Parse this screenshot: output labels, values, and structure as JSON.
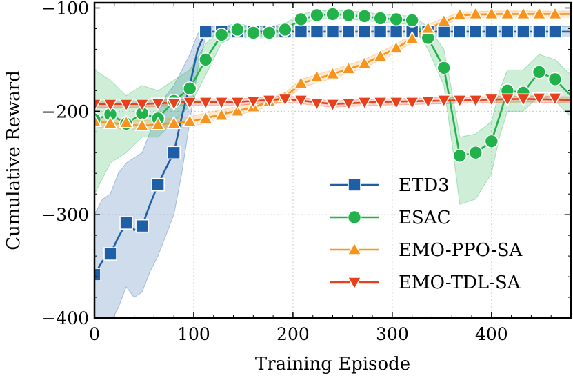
{
  "chart_data": {
    "type": "line",
    "xlabel": "Training Episode",
    "ylabel": "Cumulative Reward",
    "xlim": [
      0,
      480
    ],
    "ylim": [
      -400,
      -95
    ],
    "xticks": [
      0,
      100,
      200,
      300,
      400
    ],
    "yticks": [
      -100,
      -200,
      -300,
      -400
    ],
    "xtick_labels": [
      "0",
      "100",
      "200",
      "300",
      "400"
    ],
    "ytick_labels": [
      "−100",
      "−200",
      "−300",
      "−400"
    ],
    "grid": true,
    "legend_position": "lower-right",
    "series": [
      {
        "name": "ETD3",
        "color": "#1f5fa8",
        "marker": "square",
        "marker_x": [
          0,
          16,
          32,
          48,
          64,
          80,
          112,
          128,
          144,
          160,
          176,
          192,
          208,
          224,
          240,
          256,
          272,
          288,
          304,
          320,
          336,
          352,
          368,
          384,
          400,
          416,
          432,
          448,
          464
        ],
        "marker_y": [
          -358,
          -338,
          -308,
          -311,
          -271,
          -240,
          -123,
          -123,
          -123,
          -123,
          -123,
          -123,
          -123,
          -123,
          -123,
          -123,
          -123,
          -123,
          -123,
          -123,
          -123,
          -123,
          -123,
          -123,
          -123,
          -123,
          -123,
          -123,
          -123
        ],
        "line_x": [
          0,
          8,
          16,
          24,
          32,
          40,
          48,
          56,
          64,
          72,
          80,
          88,
          96,
          104,
          112,
          200,
          300,
          400,
          480
        ],
        "line_y": [
          -358,
          -345,
          -338,
          -322,
          -308,
          -315,
          -311,
          -290,
          -271,
          -255,
          -240,
          -205,
          -175,
          -140,
          -123,
          -123,
          -123,
          -123,
          -123
        ],
        "band_upper": [
          -300,
          -285,
          -280,
          -260,
          -250,
          -245,
          -240,
          -220,
          -200,
          -185,
          -175,
          -160,
          -145,
          -125,
          -118,
          -118,
          -118,
          -118,
          -118
        ],
        "band_lower": [
          -420,
          -410,
          -405,
          -390,
          -370,
          -380,
          -375,
          -355,
          -340,
          -320,
          -300,
          -260,
          -210,
          -160,
          -128,
          -128,
          -128,
          -128,
          -128
        ]
      },
      {
        "name": "ESAC",
        "color": "#22b24c",
        "marker": "circle",
        "marker_x": [
          0,
          16,
          32,
          48,
          64,
          80,
          96,
          112,
          128,
          144,
          160,
          176,
          192,
          208,
          224,
          240,
          256,
          272,
          288,
          304,
          320,
          336,
          352,
          368,
          384,
          400,
          416,
          432,
          448,
          464
        ],
        "marker_y": [
          -208,
          -203,
          -212,
          -202,
          -207,
          -190,
          -178,
          -150,
          -126,
          -121,
          -124,
          -124,
          -121,
          -111,
          -107,
          -106,
          -107,
          -108,
          -110,
          -111,
          -112,
          -129,
          -158,
          -243,
          -240,
          -229,
          -180,
          -182,
          -162,
          -169
        ],
        "line_x": [
          0,
          16,
          32,
          48,
          64,
          80,
          96,
          112,
          128,
          144,
          160,
          176,
          192,
          208,
          224,
          240,
          256,
          272,
          288,
          304,
          320,
          336,
          352,
          360,
          368,
          384,
          400,
          408,
          416,
          432,
          448,
          464,
          480
        ],
        "line_y": [
          -208,
          -203,
          -212,
          -202,
          -207,
          -190,
          -178,
          -150,
          -126,
          -121,
          -124,
          -124,
          -121,
          -111,
          -107,
          -106,
          -107,
          -108,
          -110,
          -111,
          -112,
          -129,
          -158,
          -200,
          -243,
          -240,
          -229,
          -205,
          -180,
          -182,
          -162,
          -169,
          -185
        ],
        "band_upper": [
          -160,
          -170,
          -185,
          -175,
          -180,
          -170,
          -160,
          -135,
          -118,
          -115,
          -118,
          -118,
          -115,
          -106,
          -103,
          -102,
          -103,
          -104,
          -106,
          -107,
          -108,
          -118,
          -140,
          -180,
          -225,
          -222,
          -210,
          -180,
          -160,
          -160,
          -145,
          -150,
          -165
        ],
        "band_lower": [
          -280,
          -250,
          -240,
          -225,
          -225,
          -210,
          -195,
          -165,
          -134,
          -127,
          -130,
          -130,
          -127,
          -116,
          -111,
          -110,
          -111,
          -112,
          -114,
          -115,
          -116,
          -140,
          -175,
          -230,
          -290,
          -285,
          -260,
          -225,
          -200,
          -200,
          -185,
          -190,
          -205
        ]
      },
      {
        "name": "EMO-PPO-SA",
        "color": "#f7941d",
        "marker": "triangle-up",
        "marker_x": [
          0,
          16,
          32,
          48,
          64,
          80,
          96,
          112,
          128,
          144,
          160,
          176,
          192,
          208,
          224,
          240,
          256,
          272,
          288,
          304,
          320,
          336,
          352,
          368,
          384,
          400,
          416,
          432,
          448,
          464
        ],
        "marker_y": [
          -210,
          -212,
          -211,
          -214,
          -213,
          -212,
          -210,
          -207,
          -204,
          -200,
          -196,
          -191,
          -186,
          -173,
          -167,
          -164,
          -159,
          -154,
          -147,
          -139,
          -130,
          -120,
          -113,
          -107,
          -106,
          -106,
          -106,
          -106,
          -106,
          -106
        ],
        "line_x": [
          0,
          48,
          96,
          160,
          192,
          208,
          240,
          272,
          304,
          336,
          368,
          400,
          480
        ],
        "line_y": [
          -210,
          -214,
          -210,
          -196,
          -186,
          -173,
          -164,
          -154,
          -139,
          -120,
          -107,
          -106,
          -106
        ],
        "band_upper": [
          -205,
          -209,
          -205,
          -192,
          -182,
          -169,
          -160,
          -150,
          -135,
          -116,
          -104,
          -103,
          -103
        ],
        "band_lower": [
          -215,
          -219,
          -215,
          -200,
          -190,
          -177,
          -168,
          -158,
          -143,
          -124,
          -110,
          -109,
          -109
        ]
      },
      {
        "name": "EMO-TDL-SA",
        "color": "#e8401c",
        "marker": "triangle-down",
        "marker_x": [
          0,
          16,
          32,
          48,
          64,
          80,
          96,
          112,
          128,
          144,
          160,
          176,
          192,
          208,
          224,
          240,
          256,
          272,
          288,
          304,
          320,
          336,
          352,
          368,
          384,
          400,
          416,
          432,
          448,
          464
        ],
        "marker_y": [
          -193,
          -193,
          -193,
          -193,
          -192,
          -192,
          -191,
          -191,
          -191,
          -191,
          -190,
          -189,
          -188,
          -189,
          -192,
          -193,
          -192,
          -191,
          -191,
          -191,
          -191,
          -190,
          -189,
          -189,
          -189,
          -188,
          -188,
          -188,
          -187,
          -187
        ],
        "line_x": [
          0,
          48,
          96,
          144,
          192,
          240,
          288,
          336,
          384,
          432,
          480
        ],
        "line_y": [
          -193,
          -193,
          -191,
          -191,
          -188,
          -193,
          -191,
          -190,
          -189,
          -188,
          -189
        ],
        "band_upper": [
          -190,
          -190,
          -188,
          -188,
          -185,
          -190,
          -188,
          -187,
          -186,
          -185,
          -186
        ],
        "band_lower": [
          -196,
          -196,
          -194,
          -194,
          -191,
          -196,
          -194,
          -193,
          -192,
          -191,
          -192
        ]
      }
    ]
  }
}
